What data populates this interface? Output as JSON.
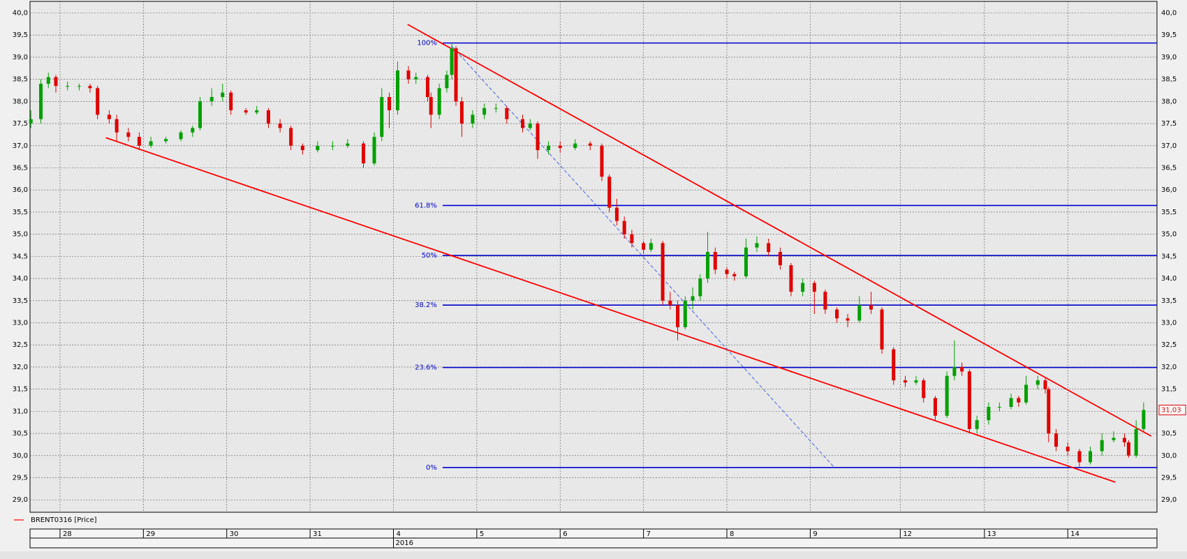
{
  "chart_data": {
    "type": "candlestick",
    "series_name": "BRENT0316 [Price]",
    "legend_color": "#ff0000",
    "up_color": "#00a000",
    "down_color": "#e00000",
    "xlim": [
      -0.36,
      13.16
    ],
    "ylim": [
      28.72,
      40.26
    ],
    "xticks": [
      {
        "value": 0,
        "label": "28"
      },
      {
        "value": 1,
        "label": "29"
      },
      {
        "value": 2,
        "label": "30"
      },
      {
        "value": 3,
        "label": "31"
      },
      {
        "value": 4,
        "label": "4"
      },
      {
        "value": 5,
        "label": "5"
      },
      {
        "value": 6,
        "label": "6"
      },
      {
        "value": 7,
        "label": "7"
      },
      {
        "value": 8,
        "label": "8"
      },
      {
        "value": 9,
        "label": "9"
      },
      {
        "value": 10.08,
        "label": "12"
      },
      {
        "value": 11.09,
        "label": "13"
      },
      {
        "value": 12.09,
        "label": "14"
      }
    ],
    "x2ticks": [
      {
        "value": 4,
        "label": "2016"
      }
    ],
    "yticks": [
      {
        "value": 29,
        "label": "29,0"
      },
      {
        "value": 29.5,
        "label": "29,5"
      },
      {
        "value": 30,
        "label": "30,0"
      },
      {
        "value": 30.5,
        "label": "30,5"
      },
      {
        "value": 31,
        "label": "31,0"
      },
      {
        "value": 31.5,
        "label": "31,5"
      },
      {
        "value": 32,
        "label": "32,0"
      },
      {
        "value": 32.5,
        "label": "32,5"
      },
      {
        "value": 33,
        "label": "33,0"
      },
      {
        "value": 33.5,
        "label": "33,5"
      },
      {
        "value": 34,
        "label": "34,0"
      },
      {
        "value": 34.5,
        "label": "34,5"
      },
      {
        "value": 35,
        "label": "35,0"
      },
      {
        "value": 35.5,
        "label": "35,5"
      },
      {
        "value": 36,
        "label": "36,0"
      },
      {
        "value": 36.5,
        "label": "36,5"
      },
      {
        "value": 37,
        "label": "37,0"
      },
      {
        "value": 37.5,
        "label": "37,5"
      },
      {
        "value": 38,
        "label": "38,0"
      },
      {
        "value": 38.5,
        "label": "38,5"
      },
      {
        "value": 39,
        "label": "39,0"
      },
      {
        "value": 39.5,
        "label": "39,5"
      },
      {
        "value": 40,
        "label": "40,0"
      }
    ],
    "grid": true,
    "last_price": {
      "value": 31.03,
      "label": "31,03"
    },
    "x": [
      -0.35,
      -0.23,
      -0.14,
      -0.05,
      0.09,
      0.23,
      0.36,
      0.45,
      0.59,
      0.68,
      0.82,
      0.95,
      1.09,
      1.27,
      1.45,
      1.59,
      1.68,
      1.82,
      1.95,
      2.05,
      2.23,
      2.36,
      2.5,
      2.64,
      2.77,
      2.91,
      3.09,
      3.27,
      3.45,
      3.64,
      3.77,
      3.86,
      3.95,
      4.05,
      4.18,
      4.27,
      4.41,
      4.45,
      4.55,
      4.64,
      4.7,
      4.75,
      4.82,
      4.95,
      5.09,
      5.23,
      5.36,
      5.55,
      5.64,
      5.73,
      5.86,
      6,
      6.18,
      6.36,
      6.5,
      6.59,
      6.68,
      6.77,
      6.86,
      7,
      7.09,
      7.23,
      7.32,
      7.41,
      7.5,
      7.59,
      7.68,
      7.77,
      7.86,
      8,
      8.09,
      8.23,
      8.36,
      8.5,
      8.64,
      8.77,
      8.91,
      9.05,
      9.18,
      9.32,
      9.45,
      9.59,
      9.73,
      9.86,
      10,
      10.14,
      10.27,
      10.36,
      10.5,
      10.64,
      10.73,
      10.82,
      10.91,
      11,
      11.14,
      11.27,
      11.41,
      11.5,
      11.59,
      11.73,
      11.82,
      11.86,
      11.95,
      12.09,
      12.23,
      12.36,
      12.5,
      12.64,
      12.77,
      12.82,
      12.91,
      13
    ],
    "ohlc": [
      [
        37.5,
        37.8,
        37.4,
        37.6
      ],
      [
        37.6,
        38.5,
        37.5,
        38.4
      ],
      [
        38.4,
        38.65,
        38.3,
        38.55
      ],
      [
        38.55,
        38.6,
        38.2,
        38.35
      ],
      [
        38.35,
        38.45,
        38.25,
        38.35
      ],
      [
        38.35,
        38.4,
        38.25,
        38.35
      ],
      [
        38.35,
        38.4,
        38.2,
        38.3
      ],
      [
        38.3,
        38.35,
        37.6,
        37.7
      ],
      [
        37.7,
        37.8,
        37.5,
        37.6
      ],
      [
        37.6,
        37.7,
        37.1,
        37.3
      ],
      [
        37.3,
        37.4,
        37.1,
        37.2
      ],
      [
        37.2,
        37.3,
        36.9,
        37.0
      ],
      [
        37.0,
        37.2,
        36.95,
        37.1
      ],
      [
        37.1,
        37.2,
        37.05,
        37.15
      ],
      [
        37.15,
        37.35,
        37.1,
        37.3
      ],
      [
        37.3,
        37.45,
        37.2,
        37.4
      ],
      [
        37.4,
        38.1,
        37.35,
        38.0
      ],
      [
        38.0,
        38.3,
        37.9,
        38.1
      ],
      [
        38.1,
        38.4,
        38.0,
        38.2
      ],
      [
        38.2,
        38.25,
        37.7,
        37.8
      ],
      [
        37.8,
        37.85,
        37.7,
        37.75
      ],
      [
        37.75,
        37.9,
        37.7,
        37.8
      ],
      [
        37.8,
        37.85,
        37.4,
        37.5
      ],
      [
        37.5,
        37.6,
        37.3,
        37.4
      ],
      [
        37.4,
        37.45,
        36.9,
        37.0
      ],
      [
        37.0,
        37.05,
        36.8,
        36.9
      ],
      [
        36.9,
        37.1,
        36.85,
        37.0
      ],
      [
        37.0,
        37.1,
        36.9,
        37.0
      ],
      [
        37.0,
        37.15,
        36.95,
        37.05
      ],
      [
        37.05,
        37.1,
        36.5,
        36.6
      ],
      [
        36.6,
        37.3,
        36.55,
        37.2
      ],
      [
        37.2,
        38.3,
        37.1,
        38.1
      ],
      [
        38.1,
        38.2,
        37.4,
        37.8
      ],
      [
        37.8,
        38.9,
        37.7,
        38.7
      ],
      [
        38.7,
        38.8,
        38.4,
        38.5
      ],
      [
        38.5,
        38.65,
        38.4,
        38.55
      ],
      [
        38.55,
        38.6,
        38.0,
        38.1
      ],
      [
        38.1,
        38.2,
        37.4,
        37.7
      ],
      [
        37.7,
        38.4,
        37.6,
        38.3
      ],
      [
        38.3,
        38.7,
        38.2,
        38.6
      ],
      [
        38.6,
        39.3,
        38.5,
        39.2
      ],
      [
        39.2,
        39.25,
        37.9,
        38.0
      ],
      [
        38.0,
        38.1,
        37.2,
        37.5
      ],
      [
        37.5,
        37.8,
        37.4,
        37.7
      ],
      [
        37.7,
        37.95,
        37.6,
        37.85
      ],
      [
        37.85,
        37.95,
        37.75,
        37.85
      ],
      [
        37.85,
        37.9,
        37.5,
        37.6
      ],
      [
        37.6,
        37.7,
        37.3,
        37.4
      ],
      [
        37.4,
        37.6,
        37.35,
        37.5
      ],
      [
        37.5,
        37.55,
        36.7,
        36.9
      ],
      [
        36.9,
        37.1,
        36.8,
        37.0
      ],
      [
        37.0,
        37.1,
        36.85,
        36.95
      ],
      [
        36.95,
        37.15,
        36.9,
        37.05
      ],
      [
        37.05,
        37.1,
        36.9,
        37.0
      ],
      [
        37.0,
        37.05,
        36.2,
        36.3
      ],
      [
        36.3,
        36.35,
        35.5,
        35.6
      ],
      [
        35.6,
        35.8,
        35.2,
        35.3
      ],
      [
        35.3,
        35.4,
        34.9,
        35.0
      ],
      [
        35.0,
        35.1,
        34.7,
        34.8
      ],
      [
        34.8,
        34.85,
        34.55,
        34.65
      ],
      [
        34.65,
        34.9,
        34.6,
        34.8
      ],
      [
        34.8,
        34.85,
        33.4,
        33.5
      ],
      [
        33.5,
        33.7,
        33.3,
        33.4
      ],
      [
        33.4,
        33.5,
        32.6,
        32.9
      ],
      [
        32.9,
        33.6,
        32.85,
        33.5
      ],
      [
        33.5,
        33.8,
        33.3,
        33.6
      ],
      [
        33.6,
        34.1,
        33.5,
        34.0
      ],
      [
        34.0,
        35.05,
        33.9,
        34.6
      ],
      [
        34.6,
        34.7,
        34.1,
        34.2
      ],
      [
        34.2,
        34.25,
        34.0,
        34.1
      ],
      [
        34.1,
        34.15,
        33.95,
        34.05
      ],
      [
        34.05,
        34.9,
        34.0,
        34.7
      ],
      [
        34.7,
        34.95,
        34.6,
        34.8
      ],
      [
        34.8,
        34.9,
        34.5,
        34.6
      ],
      [
        34.6,
        34.7,
        34.2,
        34.3
      ],
      [
        34.3,
        34.35,
        33.6,
        33.7
      ],
      [
        33.7,
        34.0,
        33.6,
        33.9
      ],
      [
        33.9,
        33.95,
        33.2,
        33.7
      ],
      [
        33.7,
        33.75,
        33.2,
        33.3
      ],
      [
        33.3,
        33.35,
        33.0,
        33.1
      ],
      [
        33.1,
        33.2,
        32.9,
        33.05
      ],
      [
        33.05,
        33.6,
        33.0,
        33.4
      ],
      [
        33.4,
        33.7,
        33.2,
        33.3
      ],
      [
        33.3,
        33.35,
        32.3,
        32.4
      ],
      [
        32.4,
        32.45,
        31.6,
        31.7
      ],
      [
        31.7,
        31.8,
        31.55,
        31.65
      ],
      [
        31.65,
        31.8,
        31.6,
        31.7
      ],
      [
        31.7,
        31.75,
        31.2,
        31.3
      ],
      [
        31.3,
        31.35,
        30.8,
        30.9
      ],
      [
        30.9,
        31.9,
        30.85,
        31.8
      ],
      [
        31.8,
        32.6,
        31.7,
        32.0
      ],
      [
        32.0,
        32.1,
        31.8,
        31.9
      ],
      [
        31.9,
        31.95,
        30.5,
        30.6
      ],
      [
        30.6,
        30.9,
        30.5,
        30.8
      ],
      [
        30.8,
        31.2,
        30.7,
        31.1
      ],
      [
        31.1,
        31.2,
        31.0,
        31.1
      ],
      [
        31.1,
        31.4,
        31.05,
        31.3
      ],
      [
        31.3,
        31.35,
        31.1,
        31.2
      ],
      [
        31.2,
        31.8,
        31.15,
        31.6
      ],
      [
        31.6,
        31.8,
        31.5,
        31.7
      ],
      [
        31.7,
        31.75,
        31.4,
        31.5
      ],
      [
        31.5,
        31.55,
        30.3,
        30.5
      ],
      [
        30.5,
        30.6,
        30.1,
        30.2
      ],
      [
        30.2,
        30.3,
        30.0,
        30.1
      ],
      [
        30.1,
        30.15,
        29.75,
        29.85
      ],
      [
        29.85,
        30.2,
        29.8,
        30.1
      ],
      [
        30.1,
        30.5,
        30.0,
        30.35
      ],
      [
        30.35,
        30.55,
        30.3,
        30.4
      ],
      [
        30.4,
        30.5,
        30.2,
        30.3
      ],
      [
        30.3,
        30.35,
        29.95,
        30.0
      ],
      [
        30.0,
        30.8,
        29.95,
        30.6
      ],
      [
        30.6,
        31.2,
        30.55,
        31.03
      ]
    ],
    "trendlines": [
      {
        "x": [
          4.17,
          13.09
        ],
        "y": [
          39.74,
          30.44
        ],
        "color": "#ff0000"
      },
      {
        "x": [
          0.55,
          12.66
        ],
        "y": [
          37.18,
          29.4
        ],
        "color": "#ff0000"
      },
      {
        "x": [
          4.7,
          9.29
        ],
        "y": [
          39.25,
          29.73
        ],
        "color": "#3355dd",
        "dashed": true
      }
    ],
    "fibonacci": {
      "x_start": 4.59,
      "color": "#0000cc",
      "levels": [
        {
          "label": "100%",
          "value": 39.32
        },
        {
          "label": "61.8%",
          "value": 35.65
        },
        {
          "label": "50%",
          "value": 34.52
        },
        {
          "label": "38.2%",
          "value": 33.4
        },
        {
          "label": "23.6%",
          "value": 31.99
        },
        {
          "label": "0%",
          "value": 29.73
        }
      ]
    }
  }
}
